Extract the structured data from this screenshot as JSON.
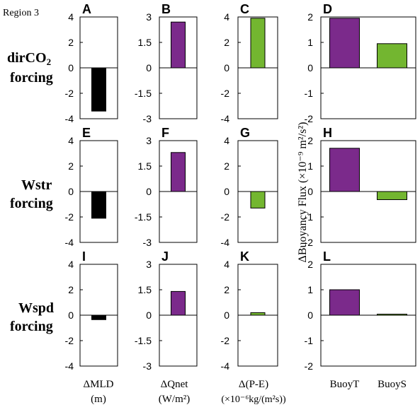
{
  "figure": {
    "corner_label": "Region 3",
    "row_labels": [
      {
        "line1": "dirCO",
        "sub": "2",
        "line2": "forcing"
      },
      {
        "line1": "Wstr",
        "sub": "",
        "line2": "forcing"
      },
      {
        "line1": "Wspd",
        "sub": "",
        "line2": "forcing"
      }
    ],
    "col_labels": [
      {
        "line1": "ΔMLD",
        "line2": "(m)"
      },
      {
        "line1": "ΔQnet",
        "line2": "(W/m²)"
      },
      {
        "line1": "Δ(P-E)",
        "line2": "(×10⁻⁶kg/(m²s))"
      },
      {
        "line1": "",
        "line2": ""
      }
    ],
    "col_d_ylabel": "ΔBuoyancy Flux  (×10⁻⁹ m²/s²)",
    "colors": {
      "black": "#000000",
      "purple": "#7b2a8b",
      "green": "#73b630",
      "frame": "#000000"
    }
  },
  "chart_data": [
    {
      "panel": "A",
      "type": "bar",
      "ylim": [
        -4,
        4
      ],
      "yticks": [
        "4",
        "2",
        "0",
        "-2",
        "-4"
      ],
      "categories": [
        ""
      ],
      "values": [
        -3.4
      ],
      "colors": [
        "black"
      ]
    },
    {
      "panel": "B",
      "type": "bar",
      "ylim": [
        -3,
        3
      ],
      "yticks": [
        "3",
        "1.5",
        "0",
        "-1.5",
        "-3"
      ],
      "categories": [
        ""
      ],
      "values": [
        2.7
      ],
      "colors": [
        "purple"
      ]
    },
    {
      "panel": "C",
      "type": "bar",
      "ylim": [
        -4,
        4
      ],
      "yticks": [
        "4",
        "2",
        "0",
        "-2",
        "-4"
      ],
      "categories": [
        ""
      ],
      "values": [
        3.9
      ],
      "colors": [
        "green"
      ]
    },
    {
      "panel": "D",
      "type": "bar",
      "ylim": [
        -2,
        2
      ],
      "yticks": [
        "2",
        "1",
        "0",
        "-1",
        "-2"
      ],
      "categories": [
        "BuoyT",
        "BuoyS"
      ],
      "values": [
        1.95,
        0.95
      ],
      "colors": [
        "purple",
        "green"
      ]
    },
    {
      "panel": "E",
      "type": "bar",
      "ylim": [
        -4,
        4
      ],
      "yticks": [
        "4",
        "2",
        "0",
        "-2",
        "-4"
      ],
      "categories": [
        ""
      ],
      "values": [
        -2.1
      ],
      "colors": [
        "black"
      ]
    },
    {
      "panel": "F",
      "type": "bar",
      "ylim": [
        -3,
        3
      ],
      "yticks": [
        "3",
        "1.5",
        "0",
        "-1.5",
        "-3"
      ],
      "categories": [
        ""
      ],
      "values": [
        2.3
      ],
      "colors": [
        "purple"
      ]
    },
    {
      "panel": "G",
      "type": "bar",
      "ylim": [
        -4,
        4
      ],
      "yticks": [
        "4",
        "2",
        "0",
        "-2",
        "-4"
      ],
      "categories": [
        ""
      ],
      "values": [
        -1.3
      ],
      "colors": [
        "green"
      ]
    },
    {
      "panel": "H",
      "type": "bar",
      "ylim": [
        -2,
        2
      ],
      "yticks": [
        "2",
        "1",
        "0",
        "-1",
        "-2"
      ],
      "categories": [
        "BuoyT",
        "BuoyS"
      ],
      "values": [
        1.7,
        -0.32
      ],
      "colors": [
        "purple",
        "green"
      ]
    },
    {
      "panel": "I",
      "type": "bar",
      "ylim": [
        -4,
        4
      ],
      "yticks": [
        "4",
        "2",
        "0",
        "-2",
        "-4"
      ],
      "categories": [
        ""
      ],
      "values": [
        -0.35
      ],
      "colors": [
        "black"
      ]
    },
    {
      "panel": "J",
      "type": "bar",
      "ylim": [
        -3,
        3
      ],
      "yticks": [
        "3",
        "1.5",
        "0",
        "-1.5",
        "-3"
      ],
      "categories": [
        ""
      ],
      "values": [
        1.4
      ],
      "colors": [
        "purple"
      ]
    },
    {
      "panel": "K",
      "type": "bar",
      "ylim": [
        -4,
        4
      ],
      "yticks": [
        "4",
        "2",
        "0",
        "-2",
        "-4"
      ],
      "categories": [
        ""
      ],
      "values": [
        0.2
      ],
      "colors": [
        "green"
      ]
    },
    {
      "panel": "L",
      "type": "bar",
      "ylim": [
        -2,
        2
      ],
      "yticks": [
        "2",
        "1",
        "0",
        "-1",
        "-2"
      ],
      "categories": [
        "BuoyT",
        "BuoyS"
      ],
      "values": [
        1.0,
        0.04
      ],
      "colors": [
        "purple",
        "green"
      ]
    }
  ]
}
